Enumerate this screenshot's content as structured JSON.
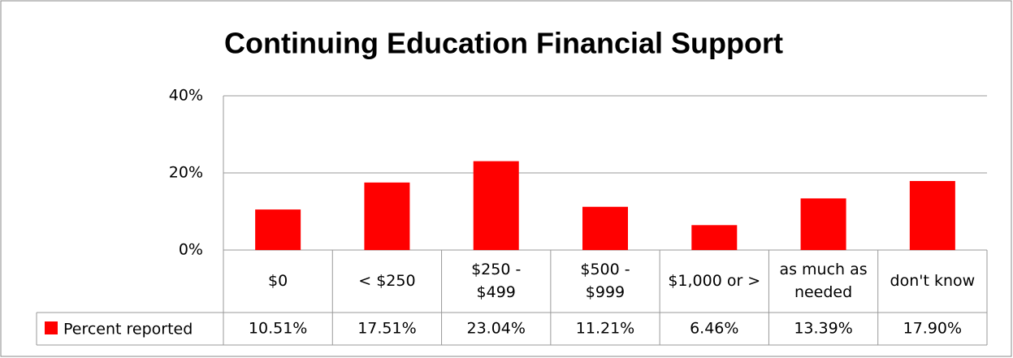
{
  "chart_data": {
    "type": "bar",
    "title": "Continuing Education Financial Support",
    "categories": [
      "$0",
      "< $250",
      "$250 - $499",
      "$500 - $999",
      "$1,000 or >",
      "as much as needed",
      "don't know"
    ],
    "series": [
      {
        "name": "Percent reported",
        "color": "#ff0000",
        "values": [
          10.51,
          17.51,
          23.04,
          11.21,
          6.46,
          13.39,
          17.9
        ],
        "value_labels": [
          "10.51%",
          "17.51%",
          "23.04%",
          "11.21%",
          "6.46%",
          "13.39%",
          "17.90%"
        ]
      }
    ],
    "ylim": [
      0,
      40
    ],
    "yticks": [
      {
        "value": 0,
        "label": "0%"
      },
      {
        "value": 20,
        "label": "20%"
      },
      {
        "value": 40,
        "label": "40%"
      }
    ],
    "grid": true
  }
}
